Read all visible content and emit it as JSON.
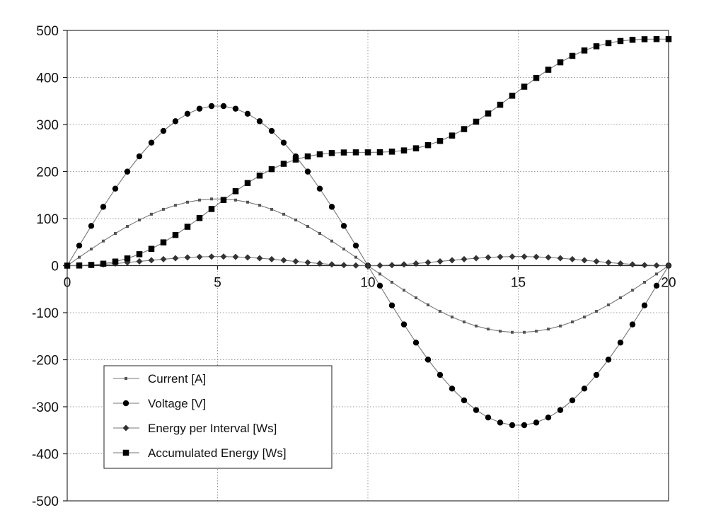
{
  "chart_data": {
    "type": "line",
    "title": "",
    "xlabel": "",
    "ylabel": "",
    "xlim": [
      0,
      20
    ],
    "ylim": [
      -500,
      500
    ],
    "x_ticks": [
      0,
      5,
      10,
      15,
      20
    ],
    "y_ticks": [
      500,
      400,
      300,
      200,
      100,
      0,
      -100,
      -200,
      -300,
      -400,
      -500
    ],
    "grid": "dotted",
    "legend_position": "bottom-left",
    "x": [
      0,
      0.4,
      0.8,
      1.2,
      1.6,
      2,
      2.4,
      2.8,
      3.2,
      3.6,
      4,
      4.4,
      4.8,
      5.2,
      5.6,
      6,
      6.4,
      6.8,
      7.2,
      7.6,
      8,
      8.4,
      8.8,
      9.2,
      9.6,
      10,
      10.4,
      10.8,
      11.2,
      11.6,
      12,
      12.4,
      12.8,
      13.2,
      13.6,
      14,
      14.4,
      14.8,
      15.2,
      15.6,
      16,
      16.4,
      16.8,
      17.2,
      17.6,
      18,
      18.4,
      18.8,
      19.2,
      19.6,
      20
    ],
    "series": [
      {
        "name": "Current [A]",
        "marker": "small-square",
        "color": "#555555",
        "values": [
          0,
          17.8,
          35.3,
          52.3,
          68.4,
          83.4,
          97.1,
          109.3,
          119.7,
          128.3,
          134.9,
          139.4,
          141.7,
          141.7,
          139.4,
          134.9,
          128.3,
          119.7,
          109.3,
          97.1,
          83.4,
          68.4,
          52.3,
          35.3,
          17.8,
          0,
          -17.8,
          -35.3,
          -52.3,
          -68.4,
          -83.4,
          -97.1,
          -109.3,
          -119.7,
          -128.3,
          -134.9,
          -139.4,
          -141.7,
          -141.7,
          -139.4,
          -134.9,
          -128.3,
          -119.7,
          -109.3,
          -97.1,
          -83.4,
          -68.4,
          -52.3,
          -35.3,
          -17.8,
          0
        ]
      },
      {
        "name": "Voltage [V]",
        "marker": "circle",
        "color": "#000000",
        "values": [
          0,
          42.6,
          84.5,
          125,
          163.6,
          199.8,
          232.3,
          261.4,
          286.4,
          307,
          322.8,
          333.6,
          339.1,
          339.1,
          333.6,
          322.8,
          307,
          286.4,
          261.4,
          232.3,
          199.8,
          163.6,
          125,
          84.5,
          42.6,
          0,
          -42.6,
          -84.5,
          -125,
          -163.6,
          -199.8,
          -232.3,
          -261.4,
          -286.4,
          -307,
          -322.8,
          -333.6,
          -339.1,
          -339.1,
          -333.6,
          -322.8,
          -307,
          -286.4,
          -261.4,
          -232.3,
          -199.8,
          -163.6,
          -125,
          -84.5,
          -42.6,
          0
        ]
      },
      {
        "name": "Energy per Interval [Ws]",
        "marker": "diamond",
        "color": "#333333",
        "values": [
          0,
          0.3,
          1.2,
          2.6,
          4.5,
          6.7,
          9,
          11.4,
          13.7,
          15.8,
          17.4,
          18.6,
          19.2,
          19.2,
          18.6,
          17.4,
          15.8,
          13.7,
          11.4,
          9,
          6.7,
          4.5,
          2.6,
          1.2,
          0.3,
          0,
          0.3,
          1.2,
          2.6,
          4.5,
          6.7,
          9,
          11.4,
          13.7,
          15.8,
          17.4,
          18.6,
          19.2,
          19.2,
          18.6,
          17.4,
          15.8,
          13.7,
          11.4,
          9,
          6.7,
          4.5,
          2.6,
          1.2,
          0.3,
          0
        ]
      },
      {
        "name": "Accumulated Energy [Ws]",
        "marker": "square",
        "color": "#000000",
        "values": [
          0,
          0.3,
          1.5,
          4.1,
          8.6,
          15.3,
          24.3,
          35.7,
          49.4,
          65.2,
          82.6,
          101.2,
          120.4,
          139.6,
          158.2,
          175.6,
          191.4,
          205.1,
          216.5,
          225.5,
          232.2,
          236.7,
          239.3,
          240.5,
          240.8,
          240.8,
          241.1,
          242.3,
          244.9,
          249.4,
          256.1,
          265.1,
          276.5,
          290.2,
          306,
          323.4,
          342,
          361.2,
          380.4,
          399,
          416.4,
          432.2,
          445.9,
          457.3,
          466.3,
          473,
          477.5,
          480.1,
          481.3,
          481.6,
          481.6
        ]
      }
    ]
  }
}
